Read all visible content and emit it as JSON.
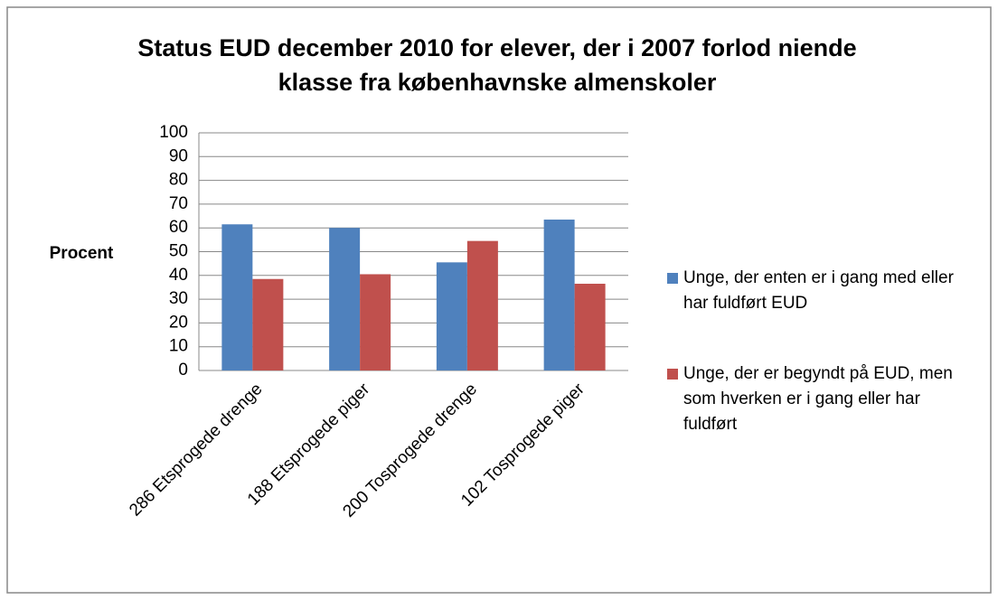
{
  "chart_data": {
    "type": "bar",
    "title": "Status EUD december 2010 for elever, der i 2007 forlod niende klasse fra københavnske almenskoler",
    "y_label": "Procent",
    "categories": [
      "286 Etsprogede drenge",
      "188 Etsprogede piger",
      "200 Tosprogede drenge",
      "102 Tosprogede piger"
    ],
    "series": [
      {
        "name": "Unge, der enten er i gang med eller har fuldført EUD",
        "color": "#4f81bd",
        "values": [
          61.5,
          60,
          45.5,
          63.5
        ]
      },
      {
        "name": "Unge, der er begyndt på EUD, men som hverken er i gang eller har fuldført",
        "color": "#c0504d",
        "values": [
          38.5,
          40.5,
          54.5,
          36.5
        ]
      }
    ],
    "ylim": [
      0,
      100
    ],
    "yticks": [
      0,
      10,
      20,
      30,
      40,
      50,
      60,
      70,
      80,
      90,
      100
    ],
    "grid": true,
    "legend": "right"
  }
}
